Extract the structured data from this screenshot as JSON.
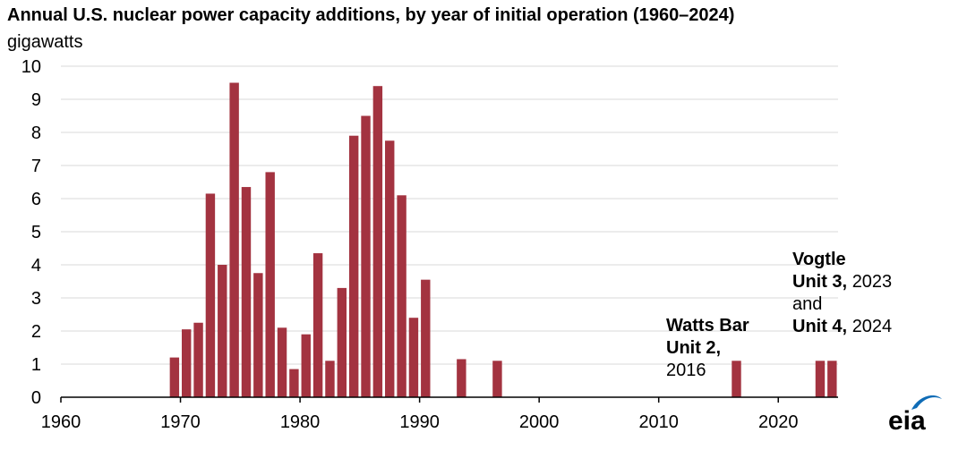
{
  "title": "Annual U.S. nuclear power capacity additions, by year of initial operation (1960–2024)",
  "unit_label": "gigawatts",
  "logo_text": "eia",
  "colors": {
    "bar": "#a33340",
    "grid": "#d9d9d9",
    "axis": "#000000",
    "logo_blue": "#0f6cb6"
  },
  "chart_data": {
    "type": "bar",
    "title": "Annual U.S. nuclear power capacity additions, by year of initial operation (1960–2024)",
    "xlabel": "",
    "ylabel": "gigawatts",
    "xlim": [
      1960,
      2025
    ],
    "ylim": [
      0,
      10
    ],
    "y_ticks": [
      0,
      1,
      2,
      3,
      4,
      5,
      6,
      7,
      8,
      9,
      10
    ],
    "x_ticks": [
      1960,
      1970,
      1980,
      1990,
      2000,
      2010,
      2020
    ],
    "grid": true,
    "series": [
      {
        "name": "Capacity additions (gigawatts)",
        "x": [
          1969,
          1970,
          1971,
          1972,
          1973,
          1974,
          1975,
          1976,
          1977,
          1978,
          1979,
          1980,
          1981,
          1982,
          1983,
          1984,
          1985,
          1986,
          1987,
          1988,
          1989,
          1990,
          1993,
          1996,
          2016,
          2023,
          2024
        ],
        "values": [
          1.2,
          2.05,
          2.25,
          6.15,
          4.0,
          9.5,
          6.35,
          3.75,
          6.8,
          2.1,
          0.85,
          1.9,
          4.35,
          1.1,
          3.3,
          7.9,
          8.5,
          9.4,
          7.75,
          6.1,
          2.4,
          3.55,
          1.15,
          1.1,
          1.1,
          1.1,
          1.1
        ]
      }
    ],
    "annotations": {
      "watts_bar": {
        "line1": "Watts Bar",
        "line2": "Unit 2,",
        "line3": "2016"
      },
      "vogtle": {
        "line1": "Vogtle",
        "unit3": "Unit 3,",
        "year3": "2023",
        "and": "and",
        "unit4": "Unit 4,",
        "year4": "2024"
      }
    }
  }
}
